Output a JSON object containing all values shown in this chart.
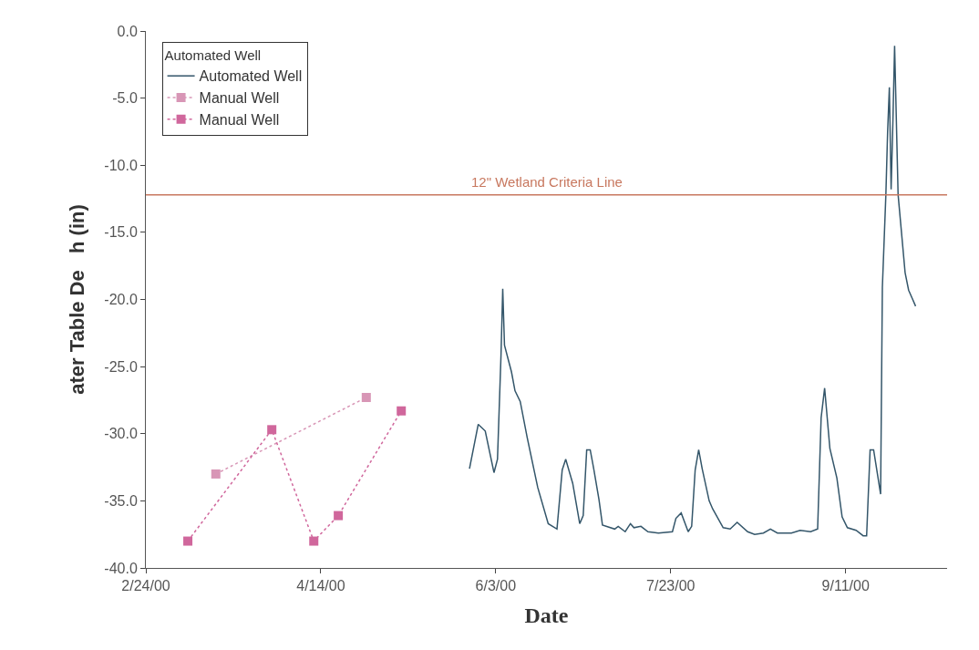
{
  "chart_data": {
    "type": "line",
    "xlabel": "Date",
    "ylabel": "ater Table De   h (in)",
    "legend_title": "Automated Well",
    "xlim": [
      "2000-02-24",
      "2000-10-10"
    ],
    "xticks": [
      {
        "value": "2000-02-24",
        "label": "2/24/00"
      },
      {
        "value": "2000-04-14",
        "label": "4/14/00"
      },
      {
        "value": "2000-06-03",
        "label": "6/3/00"
      },
      {
        "value": "2000-07-23",
        "label": "7/23/00"
      },
      {
        "value": "2000-09-11",
        "label": "9/11/00"
      }
    ],
    "ylim": [
      -40,
      0
    ],
    "yticks": [
      {
        "value": -40,
        "label": "-40.0"
      },
      {
        "value": -35,
        "label": "-35.0"
      },
      {
        "value": -30,
        "label": "-30.0"
      },
      {
        "value": -25,
        "label": "-25.0"
      },
      {
        "value": -20,
        "label": "-20.0"
      },
      {
        "value": -15,
        "label": "-15.0"
      },
      {
        "value": -10,
        "label": "-10.0"
      },
      {
        "value": -5,
        "label": "-5.0"
      },
      {
        "value": 0,
        "label": "0.0"
      }
    ],
    "legend": "top left",
    "ref_lines": [
      {
        "axis": "y",
        "value": -12.2,
        "label": "12\" Wetland Criteria Line",
        "color": "#c8785f"
      }
    ],
    "series": [
      {
        "name": "Automated Well",
        "color": "#34566a",
        "marker": "none",
        "line_style": "solid",
        "x": [
          "2000-05-26T12:00",
          "2000-05-29",
          "2000-05-31",
          "2000-06-02T12:00",
          "2000-06-03T12:00",
          "2000-06-04T12:00",
          "2000-06-05",
          "2000-06-05T12:00",
          "2000-06-07T12:00",
          "2000-06-08T12:00",
          "2000-06-10",
          "2000-06-12",
          "2000-06-15",
          "2000-06-18",
          "2000-06-20T12:00",
          "2000-06-22",
          "2000-06-23",
          "2000-06-25",
          "2000-06-27",
          "2000-06-28",
          "2000-06-29",
          "2000-06-30",
          "2000-07-01",
          "2000-07-02T12:00",
          "2000-07-03T12:00",
          "2000-07-07",
          "2000-07-08",
          "2000-07-10",
          "2000-07-11T12:00",
          "2000-07-12T12:00",
          "2000-07-14T12:00",
          "2000-07-16T12:00",
          "2000-07-19T12:00",
          "2000-07-23T12:00",
          "2000-07-24T12:00",
          "2000-07-26",
          "2000-07-28",
          "2000-07-29",
          "2000-07-30",
          "2000-07-31",
          "2000-08-01",
          "2000-08-03",
          "2000-08-04",
          "2000-08-07",
          "2000-08-09",
          "2000-08-11",
          "2000-08-14",
          "2000-08-16",
          "2000-08-18T12:00",
          "2000-08-20T12:00",
          "2000-08-22T12:00",
          "2000-08-26T12:00",
          "2000-08-29",
          "2000-09-01",
          "2000-09-03",
          "2000-09-04",
          "2000-09-05",
          "2000-09-06T12:00",
          "2000-09-08T12:00",
          "2000-09-10",
          "2000-09-11T12:00",
          "2000-09-14",
          "2000-09-16",
          "2000-09-17",
          "2000-09-18",
          "2000-09-19",
          "2000-09-21",
          "2000-09-21T12:00",
          "2000-09-22T12:00",
          "2000-09-23",
          "2000-09-23T12:00",
          "2000-09-24",
          "2000-09-24T12:00",
          "2000-09-25",
          "2000-09-26",
          "2000-09-28",
          "2000-09-29",
          "2000-09-30",
          "2000-10-01"
        ],
        "values": [
          -32.6,
          -29.3,
          -29.8,
          -32.9,
          -31.9,
          -24.2,
          -19.2,
          -23.4,
          -25.4,
          -26.8,
          -27.6,
          -30.3,
          -34.0,
          -36.7,
          -37.1,
          -32.7,
          -31.9,
          -33.7,
          -36.7,
          -36.1,
          -31.2,
          -31.2,
          -32.6,
          -34.9,
          -36.8,
          -37.1,
          -36.9,
          -37.3,
          -36.7,
          -37.0,
          -36.9,
          -37.3,
          -37.4,
          -37.3,
          -36.3,
          -35.9,
          -37.3,
          -36.9,
          -32.7,
          -31.2,
          -32.6,
          -35.0,
          -35.6,
          -37.0,
          -37.1,
          -36.6,
          -37.3,
          -37.5,
          -37.4,
          -37.1,
          -37.4,
          -37.4,
          -37.2,
          -37.3,
          -37.1,
          -28.8,
          -26.6,
          -31.1,
          -33.3,
          -36.2,
          -37.0,
          -37.2,
          -37.6,
          -37.6,
          -31.2,
          -31.2,
          -34.5,
          -19.1,
          -12.2,
          -7.5,
          -4.2,
          -11.8,
          -6.9,
          -1.1,
          -12.2,
          -18.0,
          -19.3,
          -19.9,
          -20.5
        ]
      },
      {
        "name": "Manual Well",
        "color": "#d896b6",
        "marker": "square",
        "line_style": "dotted",
        "x": [
          "2000-03-15",
          "2000-04-27"
        ],
        "values": [
          -33.0,
          -27.3
        ]
      },
      {
        "name": "Manual Well",
        "color": "#d0679c",
        "marker": "square",
        "line_style": "dotted",
        "x": [
          "2000-03-07",
          "2000-03-31",
          "2000-04-12",
          "2000-04-19",
          "2000-05-07"
        ],
        "values": [
          -38.0,
          -29.7,
          -38.0,
          -36.1,
          -28.3
        ]
      }
    ]
  }
}
